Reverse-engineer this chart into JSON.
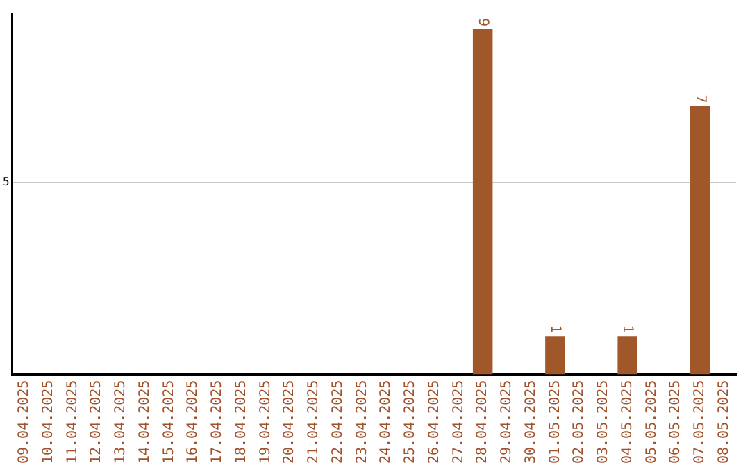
{
  "chart_data": {
    "type": "bar",
    "categories": [
      "09.04.2025",
      "10.04.2025",
      "11.04.2025",
      "12.04.2025",
      "13.04.2025",
      "14.04.2025",
      "15.04.2025",
      "16.04.2025",
      "17.04.2025",
      "18.04.2025",
      "19.04.2025",
      "20.04.2025",
      "21.04.2025",
      "22.04.2025",
      "23.04.2025",
      "24.04.2025",
      "25.04.2025",
      "26.04.2025",
      "27.04.2025",
      "28.04.2025",
      "29.04.2025",
      "30.04.2025",
      "01.05.2025",
      "02.05.2025",
      "03.05.2025",
      "04.05.2025",
      "05.05.2025",
      "06.05.2025",
      "07.05.2025",
      "08.05.2025"
    ],
    "values": [
      null,
      null,
      null,
      null,
      null,
      null,
      null,
      null,
      null,
      null,
      null,
      null,
      null,
      null,
      null,
      null,
      null,
      null,
      null,
      9,
      null,
      null,
      1,
      null,
      null,
      1,
      null,
      null,
      7,
      null
    ],
    "color": "#a0572a",
    "ylim": [
      0,
      9.4
    ],
    "yticks": [
      5
    ],
    "grid": "y",
    "data_labels": true,
    "legend": false
  }
}
